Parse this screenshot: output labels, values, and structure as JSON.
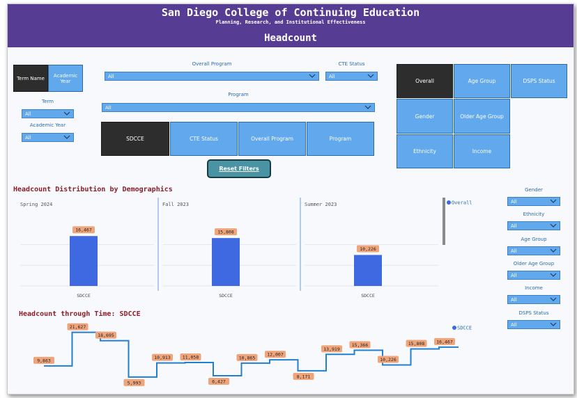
{
  "header": {
    "title": "San Diego College of Continuing Education",
    "subtitle": "Planning, Research, and Institutional Effectiveness",
    "page_title": "Headcount"
  },
  "term_toggle": {
    "term_name": "Term Name",
    "academic_year": "Academic Year"
  },
  "filters": {
    "term": {
      "label": "Term",
      "value": "All"
    },
    "academic_year": {
      "label": "Academic Year",
      "value": "All"
    },
    "overall_program": {
      "label": "Overall Program",
      "value": "All"
    },
    "cte_status": {
      "label": "CTE Status",
      "value": "All"
    },
    "program": {
      "label": "Program",
      "value": "All"
    }
  },
  "level_buttons": [
    "SDCCE",
    "CTE Status",
    "Overall Program",
    "Program"
  ],
  "demo_buttons": [
    "Overall",
    "Age Group",
    "DSPS Status",
    "Gender",
    "Older Age Group",
    "Ethnicity",
    "Income"
  ],
  "reset_label": "Reset Filters",
  "section1_title": "Headcount Distribution by Demographics",
  "section2_title": "Headcount through Time: SDCCE",
  "right_filters": [
    {
      "label": "Gender",
      "value": "All"
    },
    {
      "label": "Ethnicity",
      "value": "All"
    },
    {
      "label": "Age Group",
      "value": "All"
    },
    {
      "label": "Older Age Group",
      "value": "All"
    },
    {
      "label": "Income",
      "value": "All"
    },
    {
      "label": "DSPS Status",
      "value": "All"
    }
  ],
  "colors": {
    "header": "#563d93",
    "button_blue": "#61a8ec",
    "button_dark": "#2d2d2d",
    "bar": "#3f69e0",
    "line": "#1f7fd0",
    "label_bg": "#f0a47a",
    "title_red": "#8b1e26"
  },
  "chart_data": [
    {
      "type": "bar",
      "panels": [
        {
          "name": "Spring 2024",
          "categories": [
            "SDCCE"
          ],
          "values": [
            16467
          ],
          "labels": [
            "16,467"
          ]
        },
        {
          "name": "Fall 2023",
          "categories": [
            "SDCCE"
          ],
          "values": [
            15808
          ],
          "labels": [
            "15,808"
          ]
        },
        {
          "name": "Summer 2023",
          "categories": [
            "SDCCE"
          ],
          "values": [
            10226
          ],
          "labels": [
            "10,226"
          ]
        }
      ],
      "legend": [
        "Overall"
      ],
      "ylim": [
        0,
        20000
      ]
    },
    {
      "type": "line",
      "step": true,
      "series": [
        {
          "name": "SDCCE",
          "values": [
            9863,
            21627,
            18695,
            5993,
            10913,
            11058,
            6427,
            10865,
            12007,
            8171,
            13919,
            15366,
            10226,
            15808,
            16467
          ],
          "labels": [
            "9,863",
            "21,627",
            "18,695",
            "5,993",
            "10,913",
            "11,058",
            "6,427",
            "10,865",
            "12,007",
            "8,171",
            "13,919",
            "15,366",
            "10,226",
            "15,808",
            "16,467"
          ]
        }
      ],
      "ylim": [
        4000,
        23000
      ]
    }
  ]
}
